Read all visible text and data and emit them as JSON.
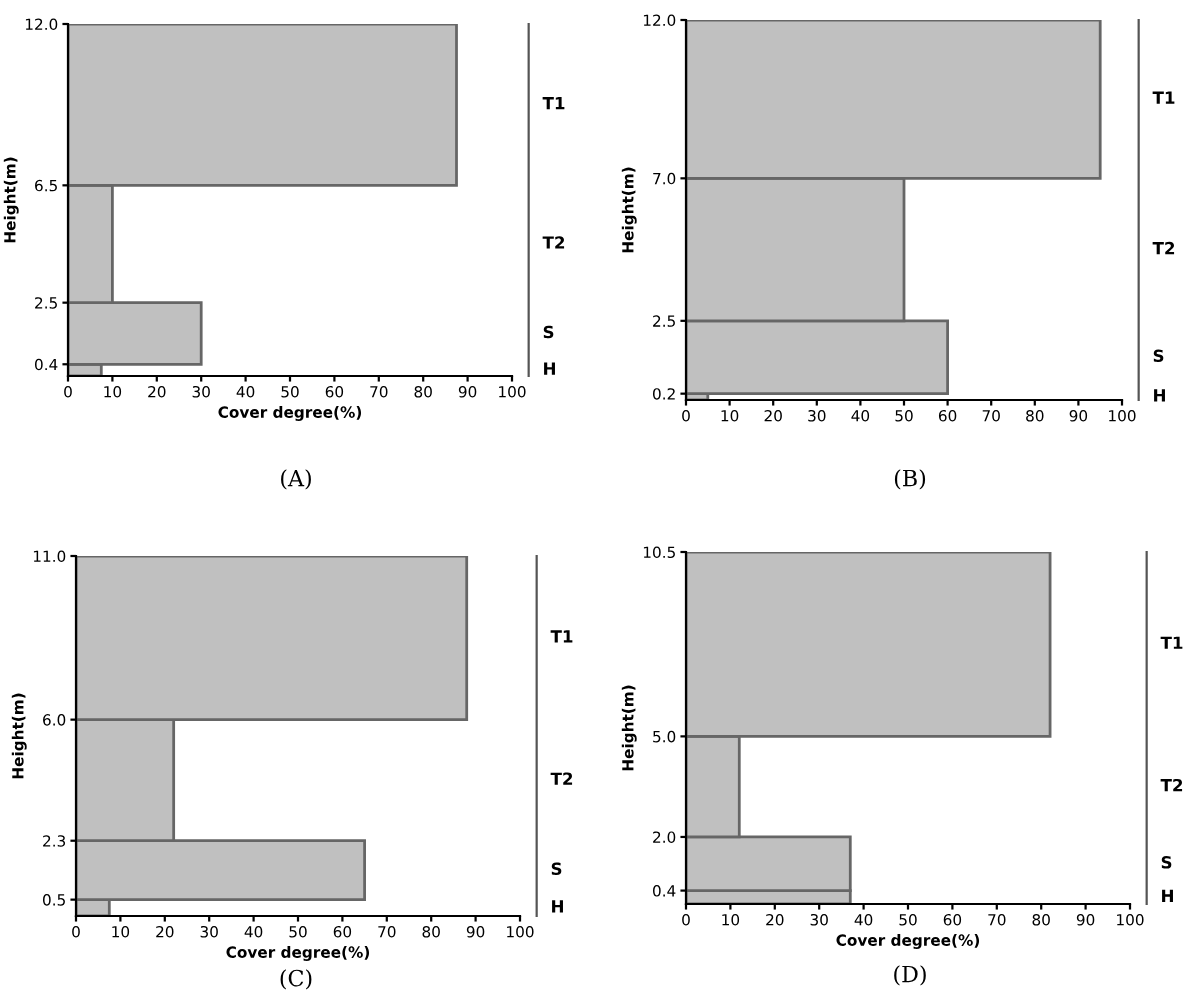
{
  "chart_data": [
    {
      "type": "histogram",
      "orientation": "horizontal",
      "bins": [
        0,
        0.4,
        2.5,
        6.5,
        12.0
      ],
      "values": [
        7.5,
        30,
        10,
        87.5
      ],
      "color": "#c0c0c0",
      "xlabel": "Cover degree(%)",
      "ylabel": "Height(m)",
      "xlim": [
        0,
        100
      ],
      "xticks": [
        0,
        10,
        20,
        30,
        40,
        50,
        60,
        70,
        80,
        90,
        100
      ],
      "ylim": [
        0,
        12.0
      ],
      "yticks": [
        {
          "value": 0.4,
          "label": "0.4"
        },
        {
          "value": 2.5,
          "label": "2.5"
        },
        {
          "value": 6.5,
          "label": "6.5"
        },
        {
          "value": 12.0,
          "label": "12.0"
        }
      ],
      "annotations": [
        "T1",
        "T2",
        "S",
        "H",
        "(A)"
      ],
      "grid": false
    },
    {
      "type": "histogram",
      "orientation": "horizontal",
      "bins": [
        0,
        0.2,
        2.5,
        7.0,
        12.0
      ],
      "values": [
        5,
        60,
        50,
        95
      ],
      "color": "#c0c0c0",
      "ylabel": "Height(m)",
      "xlim": [
        0,
        100
      ],
      "xticks": [
        0,
        10,
        20,
        30,
        40,
        50,
        60,
        70,
        80,
        90,
        100
      ],
      "ylim": [
        0,
        12.0
      ],
      "yticks": [
        {
          "value": 0.2,
          "label": "0.2"
        },
        {
          "value": 2.5,
          "label": "2.5"
        },
        {
          "value": 7.0,
          "label": "7.0"
        },
        {
          "value": 12.0,
          "label": "12.0"
        }
      ],
      "annotations": [
        "T1",
        "T2",
        "S",
        "H",
        "(B)"
      ],
      "grid": false
    },
    {
      "type": "histogram",
      "orientation": "horizontal",
      "bins": [
        0,
        0.5,
        2.3,
        6.0,
        11.0
      ],
      "values": [
        7.5,
        65,
        22,
        88
      ],
      "color": "#c0c0c0",
      "xlabel": "Cover degree(%)",
      "ylabel": "Height(m)",
      "xlim": [
        0,
        100
      ],
      "xticks": [
        0,
        10,
        20,
        30,
        40,
        50,
        60,
        70,
        80,
        90,
        100
      ],
      "ylim": [
        0,
        11.0
      ],
      "yticks": [
        {
          "value": 0.5,
          "label": "0.5"
        },
        {
          "value": 2.3,
          "label": "2.3"
        },
        {
          "value": 6.0,
          "label": "6.0"
        },
        {
          "value": 11.0,
          "label": "11.0"
        }
      ],
      "annotations": [
        "T1",
        "T2",
        "S",
        "H",
        "(C)"
      ],
      "grid": false
    },
    {
      "type": "histogram",
      "orientation": "horizontal",
      "bins": [
        0,
        0.4,
        2.0,
        5.0,
        10.5
      ],
      "values": [
        37,
        37,
        12,
        82
      ],
      "color": "#c0c0c0",
      "xlabel": "Cover degree(%)",
      "ylabel": "Height(m)",
      "xlim": [
        0,
        100
      ],
      "xticks": [
        0,
        10,
        20,
        30,
        40,
        50,
        60,
        70,
        80,
        90,
        100
      ],
      "ylim": [
        0,
        10.5
      ],
      "yticks": [
        {
          "value": 0.4,
          "label": "0.4"
        },
        {
          "value": 2.0,
          "label": "2.0"
        },
        {
          "value": 5.0,
          "label": "5.0"
        },
        {
          "value": 10.5,
          "label": "10.5"
        }
      ],
      "annotations": [
        "T1",
        "T2",
        "S",
        "H",
        "(D)"
      ],
      "grid": false
    }
  ]
}
